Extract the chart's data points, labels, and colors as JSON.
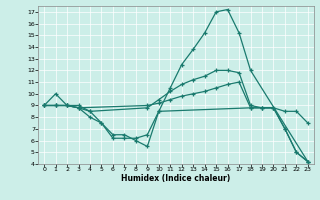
{
  "xlabel": "Humidex (Indice chaleur)",
  "background_color": "#cceee8",
  "line_color": "#1a7a6e",
  "xlim": [
    -0.5,
    23.5
  ],
  "ylim": [
    4,
    17.5
  ],
  "xticks": [
    0,
    1,
    2,
    3,
    4,
    5,
    6,
    7,
    8,
    9,
    10,
    11,
    12,
    13,
    14,
    15,
    16,
    17,
    18,
    19,
    20,
    21,
    22,
    23
  ],
  "yticks": [
    4,
    5,
    6,
    7,
    8,
    9,
    10,
    11,
    12,
    13,
    14,
    15,
    16,
    17
  ],
  "line1_x": [
    0,
    1,
    2,
    3,
    4,
    5,
    6,
    7,
    8,
    9,
    10,
    11,
    12,
    13,
    14,
    15,
    16,
    17,
    18,
    23
  ],
  "line1_y": [
    9,
    10,
    9,
    9,
    8.5,
    7.5,
    6.5,
    6.5,
    6.0,
    5.5,
    8.5,
    10.5,
    12.5,
    13.8,
    15.2,
    17.0,
    17.2,
    15.2,
    12.0,
    4.2
  ],
  "line2_x": [
    0,
    1,
    2,
    3,
    4,
    9,
    10,
    11,
    12,
    13,
    14,
    15,
    16,
    17,
    18,
    19,
    20,
    21,
    22,
    23
  ],
  "line2_y": [
    9,
    9.0,
    9.0,
    8.8,
    8.5,
    8.8,
    9.5,
    10.2,
    10.8,
    11.2,
    11.5,
    12.0,
    12.0,
    11.8,
    9.0,
    8.8,
    8.8,
    7.0,
    5.0,
    4.2
  ],
  "line3_x": [
    0,
    1,
    2,
    3,
    9,
    10,
    11,
    12,
    13,
    14,
    15,
    16,
    17,
    18,
    19,
    20,
    21,
    22,
    23
  ],
  "line3_y": [
    9,
    9,
    9,
    8.8,
    9.0,
    9.2,
    9.5,
    9.8,
    10.0,
    10.2,
    10.5,
    10.8,
    11.0,
    8.8,
    8.8,
    8.8,
    8.5,
    8.5,
    7.5
  ],
  "line4_x": [
    0,
    1,
    2,
    3,
    4,
    5,
    6,
    7,
    8,
    9,
    10,
    18,
    19,
    20,
    21,
    22,
    23
  ],
  "line4_y": [
    9,
    9,
    9,
    8.8,
    8.0,
    7.5,
    6.2,
    6.2,
    6.2,
    6.5,
    8.5,
    8.8,
    8.8,
    8.8,
    7.0,
    5.0,
    4.2
  ]
}
